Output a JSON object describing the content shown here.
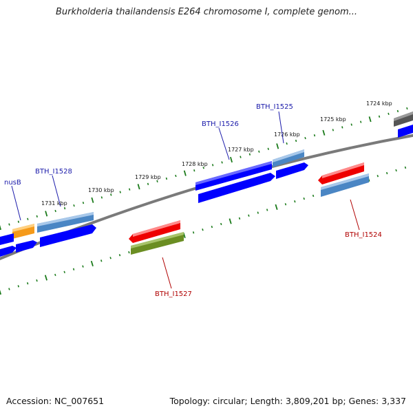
{
  "title": "Burkholderia thailandensis E264 chromosome I, complete genom...",
  "footer": {
    "accession": "Accession: NC_007651",
    "summary": "Topology: circular; Length: 3,809,201 bp; Genes: 3,337"
  },
  "colors": {
    "backbone": "#808080",
    "tick": "#1a7a1a",
    "gene_blue": "#0000ff",
    "gene_steel": "#4a86c4",
    "gene_orange": "#f59a1a",
    "gene_red": "#ee0000",
    "gene_olive": "#6b8e23",
    "gene_gray": "#666666",
    "label_blue": "#1a1aaa",
    "label_red": "#b00000"
  },
  "kbp_labels": [
    "1731 kbp",
    "1730 kbp",
    "1729 kbp",
    "1728 kbp",
    "1727 kbp",
    "1726 kbp",
    "1725 kbp",
    "1724 kbp"
  ],
  "gene_labels": {
    "nusB": "nusB",
    "BTH_I1528": "BTH_I1528",
    "BTH_I1526": "BTH_I1526",
    "BTH_I1525": "BTH_I1525",
    "BTH_I1527": "BTH_I1527",
    "BTH_I1524": "BTH_I1524"
  }
}
